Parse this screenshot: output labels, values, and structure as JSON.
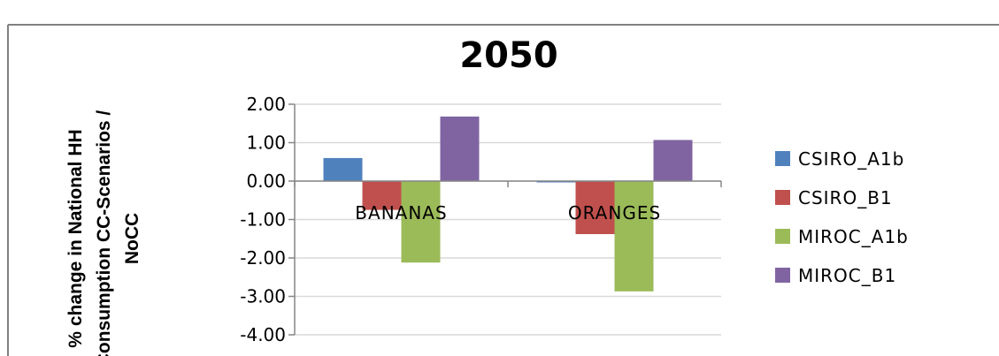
{
  "chart_data": {
    "type": "bar",
    "title": "2050",
    "ylabel_lines": [
      "% change in National HH",
      "Consumption CC-Scenarios /",
      "NoCC"
    ],
    "categories": [
      "BANANAS",
      "ORANGES"
    ],
    "series": [
      {
        "name": "CSIRO_A1b",
        "color": "#4f81bd",
        "values": [
          0.6,
          -0.03
        ]
      },
      {
        "name": "CSIRO_B1",
        "color": "#c0504d",
        "values": [
          -0.75,
          -1.38
        ]
      },
      {
        "name": "MIROC_A1b",
        "color": "#9bbb59",
        "values": [
          -2.12,
          -2.87
        ]
      },
      {
        "name": "MIROC_B1",
        "color": "#8064a2",
        "values": [
          1.68,
          1.07
        ]
      }
    ],
    "ylim": [
      -4,
      2
    ],
    "yticks": [
      "2.00",
      "1.00",
      "0.00",
      "-1.00",
      "-2.00",
      "-3.00",
      "-4.00"
    ],
    "grid": true,
    "legend": "right"
  }
}
